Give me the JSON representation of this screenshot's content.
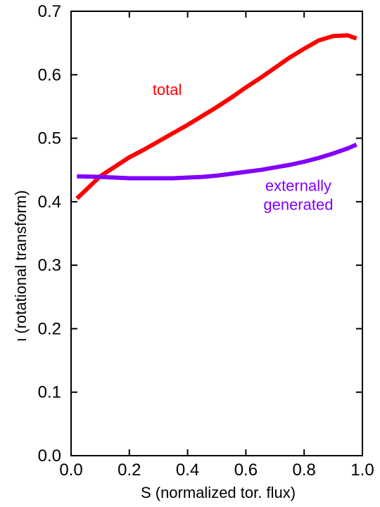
{
  "chart_data": {
    "type": "line",
    "title": "",
    "xlabel": "S (normalized  tor. flux)",
    "ylabel": "ι (rotational transform)",
    "xlim": [
      0,
      1
    ],
    "ylim": [
      0,
      0.7
    ],
    "xticks": [
      0,
      0.2,
      0.4,
      0.6,
      0.8,
      1.0
    ],
    "xtick_labels": [
      "0.0",
      "0.2",
      "0.4",
      "0.6",
      "0.8",
      "1.0"
    ],
    "yticks": [
      0,
      0.1,
      0.2,
      0.3,
      0.4,
      0.5,
      0.6,
      0.7
    ],
    "ytick_labels": [
      "0.0",
      "0.1",
      "0.2",
      "0.3",
      "0.4",
      "0.5",
      "0.6",
      "0.7"
    ],
    "grid": false,
    "legend": "none",
    "series": [
      {
        "name": "total",
        "color": "#ff0000",
        "x": [
          0.02,
          0.05,
          0.1,
          0.15,
          0.2,
          0.25,
          0.3,
          0.35,
          0.4,
          0.45,
          0.5,
          0.55,
          0.6,
          0.65,
          0.7,
          0.75,
          0.8,
          0.85,
          0.9,
          0.95,
          0.98
        ],
        "y": [
          0.405,
          0.418,
          0.44,
          0.455,
          0.47,
          0.482,
          0.495,
          0.508,
          0.521,
          0.535,
          0.549,
          0.564,
          0.58,
          0.595,
          0.611,
          0.627,
          0.641,
          0.654,
          0.661,
          0.662,
          0.657
        ]
      },
      {
        "name": "externally generated",
        "label_lines": [
          "externally",
          "generated"
        ],
        "color": "#8000ff",
        "x": [
          0.02,
          0.1,
          0.15,
          0.2,
          0.25,
          0.3,
          0.35,
          0.4,
          0.45,
          0.5,
          0.55,
          0.6,
          0.65,
          0.7,
          0.75,
          0.8,
          0.85,
          0.9,
          0.95,
          0.98
        ],
        "y": [
          0.44,
          0.439,
          0.438,
          0.437,
          0.437,
          0.437,
          0.437,
          0.438,
          0.439,
          0.441,
          0.444,
          0.447,
          0.45,
          0.454,
          0.458,
          0.463,
          0.469,
          0.476,
          0.484,
          0.49
        ]
      }
    ]
  }
}
